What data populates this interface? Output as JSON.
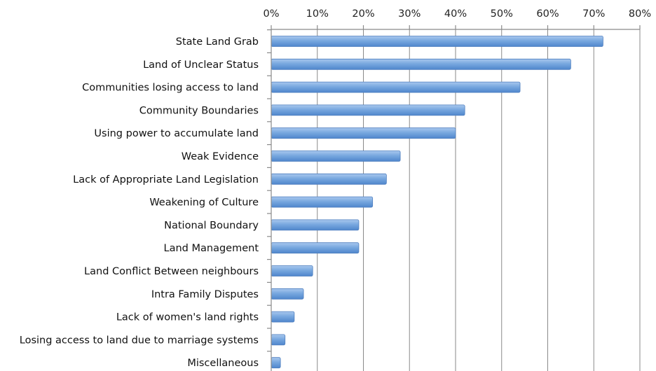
{
  "chart_data": {
    "type": "bar",
    "orientation": "horizontal",
    "title": "",
    "xlabel": "",
    "ylabel": "",
    "xlim": [
      0,
      80
    ],
    "x_ticks": [
      "0%",
      "10%",
      "20%",
      "30%",
      "40%",
      "50%",
      "60%",
      "70%",
      "80%"
    ],
    "x_axis_position": "top",
    "grid": true,
    "legend": "none",
    "bar_color": "#6f9fd8",
    "bar_edge_color": "#4f7fbf",
    "categories": [
      "State Land Grab",
      "Land of Unclear Status",
      "Communities losing access to land",
      "Community Boundaries",
      "Using power to accumulate land",
      "Weak Evidence",
      "Lack of Appropriate Land Legislation",
      "Weakening of Culture",
      "National Boundary",
      "Land Management",
      "Land Conflict Between neighbours",
      "Intra Family Disputes",
      "Lack of women's land rights",
      "Losing access to land due to marriage systems",
      "Miscellaneous"
    ],
    "values": [
      72,
      65,
      54,
      42,
      40,
      28,
      25,
      22,
      19,
      19,
      9,
      7,
      5,
      3,
      2
    ],
    "unit": "%"
  }
}
